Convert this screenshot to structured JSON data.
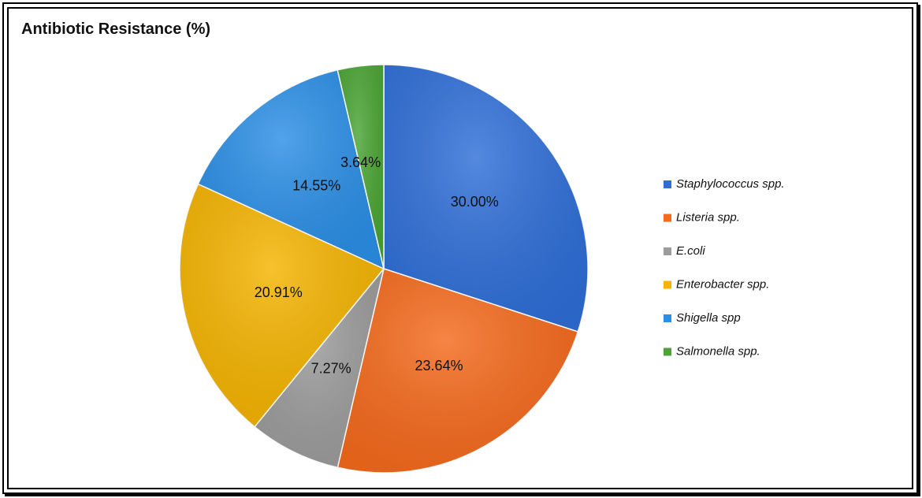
{
  "chart_data": {
    "type": "pie",
    "title": "Antibiotic Resistance (%)",
    "legend_position": "right",
    "categories": [
      "Staphylococcus spp.",
      "Listeria spp.",
      "E.coli",
      "Enterobacter spp.",
      "Shigella spp",
      "Salmonella spp."
    ],
    "values": [
      30.0,
      23.64,
      7.27,
      20.91,
      14.55,
      3.64
    ],
    "data_labels": [
      "30.00%",
      "23.64%",
      "7.27%",
      "20.91%",
      "14.55%",
      "3.64%"
    ],
    "colors": [
      "#2f6fd8",
      "#f56a1c",
      "#9c9c9c",
      "#f5b400",
      "#2b8fe6",
      "#4aa534"
    ]
  }
}
